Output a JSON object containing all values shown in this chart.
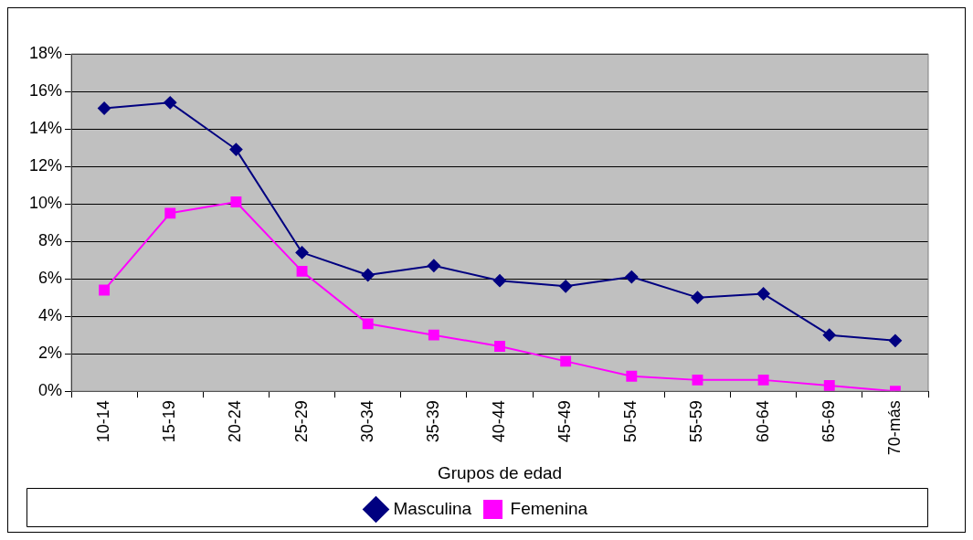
{
  "chart_data": {
    "type": "line",
    "xlabel": "Grupos de edad",
    "categories": [
      "10-14",
      "15-19",
      "20-24",
      "25-29",
      "30-34",
      "35-39",
      "40-44",
      "45-49",
      "50-54",
      "55-59",
      "60-64",
      "65-69",
      "70-más"
    ],
    "series": [
      {
        "name": "Masculina",
        "color": "#000080",
        "marker": "diamond",
        "values": [
          15.1,
          15.4,
          12.9,
          7.4,
          6.2,
          6.7,
          5.9,
          5.6,
          6.1,
          5.0,
          5.2,
          3.0,
          2.7
        ]
      },
      {
        "name": "Femenina",
        "color": "#ff00ff",
        "marker": "square",
        "values": [
          5.4,
          9.5,
          10.1,
          6.4,
          3.6,
          3.0,
          2.4,
          1.6,
          0.8,
          0.6,
          0.6,
          0.3,
          0
        ]
      }
    ],
    "ylim": [
      0,
      18
    ],
    "yticks": [
      {
        "value": 0,
        "label": "0%"
      },
      {
        "value": 2,
        "label": "2%"
      },
      {
        "value": 4,
        "label": "4%"
      },
      {
        "value": 6,
        "label": "6%"
      },
      {
        "value": 8,
        "label": "8%"
      },
      {
        "value": 10,
        "label": "10%"
      },
      {
        "value": 12,
        "label": "12%"
      },
      {
        "value": 14,
        "label": "14%"
      },
      {
        "value": 16,
        "label": "16%"
      },
      {
        "value": 18,
        "label": "18%"
      }
    ],
    "grid": "y",
    "legend": "bottom",
    "line_style": "solid"
  }
}
